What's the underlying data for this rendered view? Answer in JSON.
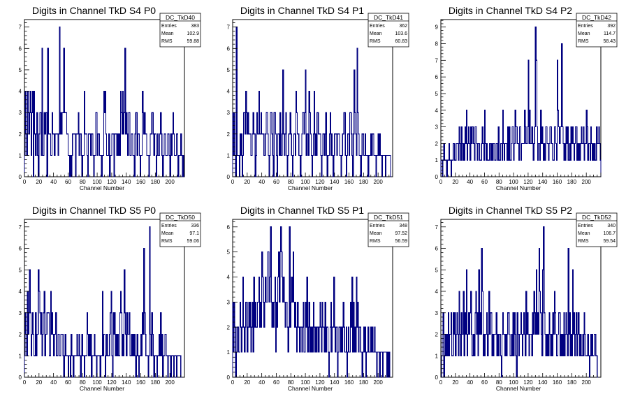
{
  "chart_data": [
    {
      "type": "histogram",
      "title": "Digits in Channel TkD S4 P0",
      "xlabel": "Channel Number",
      "xlim": [
        0,
        220
      ],
      "ylim": [
        0,
        7.35
      ],
      "xticks": [
        0,
        20,
        40,
        60,
        80,
        100,
        120,
        140,
        160,
        180,
        200
      ],
      "yticks": [
        0,
        1,
        2,
        3,
        4,
        5,
        6,
        7
      ],
      "stats": {
        "name": "DC_TkD40",
        "Entries": "383",
        "Mean": "102.9",
        "RMS": "59.88"
      },
      "color": "#000080",
      "values": [
        1,
        4,
        2,
        1,
        4,
        3,
        2,
        3,
        4,
        1,
        3,
        4,
        0,
        4,
        2,
        1,
        2,
        3,
        1,
        0,
        2,
        3,
        3,
        1,
        6,
        1,
        1,
        3,
        2,
        3,
        3,
        0,
        6,
        2,
        2,
        2,
        1,
        1,
        3,
        2,
        2,
        1,
        2,
        2,
        2,
        2,
        1,
        2,
        7,
        2,
        3,
        2,
        3,
        3,
        6,
        3,
        3,
        3,
        2,
        2,
        1,
        1,
        0,
        1,
        0,
        1,
        2,
        2,
        2,
        2,
        0,
        2,
        2,
        2,
        3,
        1,
        2,
        2,
        1,
        0,
        1,
        1,
        4,
        2,
        2,
        2,
        1,
        0,
        2,
        2,
        2,
        1,
        2,
        2,
        1,
        0,
        1,
        1,
        3,
        3,
        1,
        2,
        2,
        1,
        1,
        1,
        0,
        1,
        1,
        4,
        3,
        4,
        2,
        1,
        1,
        1,
        2,
        0,
        1,
        1,
        2,
        2,
        2,
        0,
        2,
        2,
        2,
        1,
        2,
        1,
        2,
        1,
        4,
        3,
        2,
        4,
        2,
        3,
        6,
        2,
        3,
        2,
        1,
        3,
        3,
        1,
        1,
        2,
        2,
        1,
        1,
        0,
        2,
        3,
        3,
        1,
        2,
        2,
        1,
        0,
        1,
        1,
        4,
        3,
        2,
        3,
        2,
        2,
        1,
        1,
        1,
        0,
        1,
        2,
        2,
        3,
        3,
        2,
        1,
        2,
        2,
        0,
        1,
        2,
        1,
        1,
        2,
        3,
        2,
        1,
        0,
        1,
        2,
        2,
        1,
        1,
        1,
        2,
        2,
        1,
        0,
        2,
        1,
        2,
        3,
        2,
        1,
        1,
        1,
        2,
        2,
        0,
        1,
        1,
        1,
        2,
        1,
        0,
        1
      ]
    },
    {
      "type": "histogram",
      "title": "Digits in Channel TkD S4 P1",
      "xlabel": "Channel Number",
      "xlim": [
        0,
        220
      ],
      "ylim": [
        0,
        7.35
      ],
      "xticks": [
        0,
        20,
        40,
        60,
        80,
        100,
        120,
        140,
        160,
        180,
        200
      ],
      "yticks": [
        0,
        1,
        2,
        3,
        4,
        5,
        6,
        7
      ],
      "stats": {
        "name": "DC_TkD41",
        "Entries": "362",
        "Mean": "103.6",
        "RMS": "60.83"
      },
      "color": "#000080",
      "values": [
        3,
        1,
        3,
        1,
        0,
        7,
        1,
        1,
        1,
        0,
        2,
        1,
        2,
        0,
        1,
        3,
        3,
        2,
        4,
        3,
        2,
        3,
        2,
        2,
        2,
        1,
        1,
        2,
        3,
        2,
        2,
        0,
        1,
        3,
        2,
        2,
        4,
        2,
        2,
        3,
        2,
        2,
        2,
        1,
        1,
        2,
        3,
        3,
        2,
        1,
        0,
        1,
        3,
        3,
        2,
        1,
        0,
        3,
        3,
        2,
        1,
        0,
        2,
        2,
        1,
        3,
        1,
        1,
        2,
        5,
        2,
        1,
        2,
        3,
        1,
        0,
        1,
        2,
        2,
        3,
        2,
        1,
        0,
        1,
        2,
        2,
        1,
        4,
        3,
        2,
        2,
        1,
        1,
        0,
        1,
        2,
        3,
        3,
        2,
        3,
        5,
        1,
        2,
        2,
        1,
        4,
        3,
        2,
        1,
        0,
        1,
        2,
        4,
        1,
        2,
        1,
        3,
        3,
        2,
        2,
        2,
        1,
        0,
        1,
        2,
        2,
        1,
        2,
        3,
        1,
        0,
        1,
        1,
        2,
        3,
        1,
        2,
        1,
        0,
        1,
        2,
        2,
        2,
        1,
        2,
        2,
        2,
        1,
        1,
        0,
        1,
        2,
        2,
        3,
        3,
        1,
        0,
        1,
        2,
        2,
        1,
        3,
        3,
        2,
        1,
        0,
        2,
        5,
        3,
        2,
        1,
        6,
        3,
        2,
        1,
        1,
        0,
        1,
        2,
        2,
        1,
        1,
        2,
        1,
        1,
        1,
        0,
        1,
        1,
        1,
        2,
        1,
        2,
        2,
        1,
        1,
        1,
        0,
        1,
        1,
        2,
        1,
        2,
        1,
        1,
        0,
        1,
        1,
        1,
        1,
        0,
        1,
        1,
        1,
        1,
        1,
        1,
        0
      ]
    },
    {
      "type": "histogram",
      "title": "Digits in Channel TkD S4 P2",
      "xlabel": "Channel Number",
      "xlim": [
        0,
        220
      ],
      "ylim": [
        0,
        9.45
      ],
      "xticks": [
        0,
        20,
        40,
        60,
        80,
        100,
        120,
        140,
        160,
        180,
        200
      ],
      "yticks": [
        0,
        1,
        2,
        3,
        4,
        5,
        6,
        7,
        8,
        9
      ],
      "stats": {
        "name": "DC_TkD42",
        "Entries": "392",
        "Mean": "114.7",
        "RMS": "58.43"
      },
      "color": "#000080",
      "values": [
        1,
        1,
        0,
        1,
        2,
        1,
        1,
        1,
        0,
        1,
        1,
        2,
        1,
        1,
        0,
        1,
        1,
        2,
        2,
        1,
        1,
        2,
        2,
        2,
        1,
        3,
        2,
        1,
        3,
        2,
        1,
        2,
        1,
        3,
        2,
        4,
        1,
        2,
        3,
        2,
        1,
        3,
        2,
        3,
        3,
        2,
        1,
        3,
        3,
        2,
        1,
        2,
        2,
        1,
        1,
        1,
        2,
        3,
        2,
        1,
        4,
        2,
        1,
        2,
        1,
        1,
        1,
        2,
        2,
        1,
        2,
        1,
        2,
        2,
        1,
        1,
        2,
        2,
        1,
        3,
        1,
        1,
        2,
        2,
        1,
        4,
        2,
        1,
        2,
        2,
        2,
        1,
        3,
        1,
        3,
        1,
        1,
        2,
        3,
        3,
        1,
        2,
        4,
        3,
        3,
        2,
        2,
        1,
        3,
        3,
        1,
        2,
        2,
        2,
        2,
        4,
        3,
        2,
        2,
        3,
        7,
        2,
        4,
        2,
        2,
        3,
        2,
        1,
        2,
        3,
        9,
        7,
        3,
        1,
        2,
        2,
        1,
        4,
        2,
        3,
        2,
        1,
        2,
        1,
        3,
        3,
        2,
        2,
        1,
        2,
        3,
        3,
        2,
        2,
        1,
        1,
        3,
        3,
        2,
        1,
        7,
        4,
        3,
        2,
        3,
        3,
        8,
        3,
        2,
        1,
        2,
        1,
        3,
        2,
        3,
        1,
        1,
        2,
        1,
        3,
        2,
        3,
        2,
        1,
        2,
        3,
        3,
        1,
        2,
        1,
        2,
        1,
        2,
        3,
        2,
        2,
        3,
        1,
        2,
        2,
        4,
        3,
        1,
        2,
        2,
        1,
        3,
        2,
        1,
        2,
        1,
        2,
        1,
        1,
        3,
        2,
        2,
        3,
        2,
        1
      ]
    },
    {
      "type": "histogram",
      "title": "Digits in Channel TkD S5 P0",
      "xlabel": "Channel Number",
      "xlim": [
        0,
        220
      ],
      "ylim": [
        0,
        7.35
      ],
      "xticks": [
        0,
        20,
        40,
        60,
        80,
        100,
        120,
        140,
        160,
        180,
        200
      ],
      "yticks": [
        0,
        1,
        2,
        3,
        4,
        5,
        6,
        7
      ],
      "stats": {
        "name": "DC_TkD50",
        "Entries": "336",
        "Mean": "97.1",
        "RMS": "59.06"
      },
      "color": "#000080",
      "values": [
        1,
        3,
        2,
        1,
        4,
        2,
        3,
        5,
        3,
        1,
        2,
        3,
        2,
        1,
        1,
        3,
        1,
        2,
        2,
        5,
        4,
        3,
        2,
        3,
        1,
        2,
        3,
        4,
        1,
        2,
        2,
        3,
        3,
        3,
        1,
        1,
        4,
        2,
        3,
        2,
        1,
        2,
        2,
        3,
        1,
        1,
        2,
        2,
        1,
        1,
        2,
        2,
        2,
        1,
        0,
        1,
        2,
        1,
        1,
        1,
        0,
        1,
        1,
        0,
        2,
        1,
        1,
        0,
        1,
        1,
        1,
        1,
        2,
        1,
        1,
        2,
        1,
        0,
        1,
        2,
        1,
        1,
        0,
        1,
        1,
        1,
        3,
        2,
        1,
        2,
        1,
        2,
        0,
        1,
        1,
        1,
        2,
        1,
        1,
        0,
        1,
        1,
        1,
        1,
        0,
        1,
        1,
        4,
        1,
        2,
        2,
        0,
        1,
        2,
        1,
        1,
        1,
        2,
        3,
        4,
        1,
        0,
        3,
        2,
        3,
        1,
        2,
        1,
        2,
        1,
        1,
        3,
        4,
        3,
        1,
        2,
        1,
        5,
        3,
        2,
        1,
        3,
        2,
        2,
        3,
        1,
        1,
        2,
        1,
        2,
        1,
        2,
        1,
        0,
        1,
        2,
        1,
        0,
        1,
        1,
        2,
        1,
        3,
        2,
        6,
        3,
        2,
        1,
        1,
        1,
        0,
        1,
        7,
        2,
        1,
        3,
        2,
        1,
        0,
        1,
        1,
        1,
        0,
        1,
        1,
        2,
        1,
        3,
        1,
        2,
        0,
        1,
        1,
        2,
        2,
        1,
        1,
        0,
        1,
        1,
        1,
        0,
        1,
        1,
        1,
        0,
        1,
        1,
        1,
        0,
        1,
        1,
        1,
        1,
        1,
        0
      ]
    },
    {
      "type": "histogram",
      "title": "Digits in Channel TkD S5 P1",
      "xlabel": "Channel Number",
      "xlim": [
        0,
        220
      ],
      "ylim": [
        0,
        6.3
      ],
      "xticks": [
        0,
        20,
        40,
        60,
        80,
        100,
        120,
        140,
        160,
        180,
        200
      ],
      "yticks": [
        0,
        1,
        2,
        3,
        4,
        5,
        6
      ],
      "stats": {
        "name": "DC_TkD51",
        "Entries": "348",
        "Mean": "97.52",
        "RMS": "56.59"
      },
      "color": "#000080",
      "values": [
        3,
        1,
        3,
        2,
        0,
        1,
        2,
        2,
        1,
        1,
        3,
        2,
        1,
        2,
        4,
        2,
        1,
        2,
        3,
        3,
        1,
        2,
        3,
        2,
        3,
        1,
        2,
        3,
        1,
        4,
        2,
        3,
        2,
        2,
        3,
        3,
        4,
        2,
        3,
        2,
        5,
        4,
        3,
        2,
        3,
        4,
        3,
        3,
        5,
        5,
        3,
        4,
        6,
        3,
        2,
        3,
        2,
        3,
        4,
        1,
        3,
        2,
        4,
        5,
        3,
        5,
        6,
        5,
        4,
        3,
        4,
        3,
        2,
        3,
        3,
        2,
        1,
        2,
        6,
        2,
        3,
        4,
        3,
        5,
        3,
        2,
        3,
        2,
        1,
        3,
        2,
        2,
        1,
        2,
        2,
        1,
        2,
        3,
        1,
        1,
        3,
        2,
        4,
        1,
        2,
        3,
        1,
        2,
        1,
        2,
        1,
        3,
        2,
        1,
        2,
        1,
        2,
        2,
        1,
        2,
        3,
        2,
        1,
        3,
        2,
        2,
        1,
        3,
        1,
        2,
        2,
        1,
        0,
        1,
        2,
        3,
        1,
        2,
        2,
        4,
        2,
        1,
        2,
        2,
        0,
        1,
        2,
        2,
        1,
        2,
        1,
        2,
        3,
        2,
        1,
        1,
        2,
        0,
        1,
        2,
        1,
        1,
        3,
        2,
        4,
        1,
        3,
        1,
        2,
        1,
        4,
        2,
        3,
        1,
        2,
        2,
        1,
        1,
        0,
        1,
        2,
        1,
        2,
        0,
        1,
        1,
        2,
        1,
        1,
        1,
        2,
        1,
        2,
        1,
        1,
        2,
        1,
        1,
        0,
        1,
        1,
        1,
        0,
        1,
        1,
        1,
        0,
        1,
        1,
        1,
        1,
        1,
        0,
        1,
        0,
        1
      ]
    },
    {
      "type": "histogram",
      "title": "Digits in Channel TkD S5 P2",
      "xlabel": "Channel Number",
      "xlim": [
        0,
        220
      ],
      "ylim": [
        0,
        7.35
      ],
      "xticks": [
        0,
        20,
        40,
        60,
        80,
        100,
        120,
        140,
        160,
        180,
        200
      ],
      "yticks": [
        0,
        1,
        2,
        3,
        4,
        5,
        6,
        7
      ],
      "stats": {
        "name": "DC_TkD52",
        "Entries": "340",
        "Mean": "106.7",
        "RMS": "59.54"
      },
      "color": "#000080",
      "values": [
        0,
        1,
        2,
        3,
        0,
        1,
        2,
        1,
        2,
        1,
        3,
        1,
        2,
        2,
        3,
        1,
        1,
        3,
        2,
        3,
        1,
        2,
        3,
        2,
        1,
        4,
        2,
        1,
        3,
        2,
        2,
        4,
        1,
        3,
        2,
        5,
        1,
        2,
        3,
        2,
        3,
        4,
        2,
        1,
        1,
        2,
        1,
        3,
        4,
        2,
        3,
        1,
        5,
        2,
        3,
        2,
        6,
        4,
        1,
        2,
        1,
        2,
        2,
        3,
        1,
        2,
        4,
        2,
        3,
        3,
        1,
        2,
        1,
        2,
        2,
        2,
        3,
        1,
        2,
        1,
        2,
        2,
        1,
        0,
        2,
        3,
        2,
        2,
        1,
        2,
        1,
        2,
        3,
        3,
        2,
        1,
        1,
        2,
        1,
        3,
        1,
        3,
        2,
        1,
        0,
        3,
        2,
        1,
        2,
        2,
        3,
        2,
        1,
        2,
        3,
        2,
        1,
        4,
        2,
        3,
        2,
        1,
        2,
        2,
        2,
        1,
        3,
        2,
        4,
        3,
        2,
        5,
        2,
        3,
        2,
        6,
        4,
        3,
        2,
        1,
        5,
        7,
        3,
        2,
        1,
        2,
        1,
        2,
        1,
        3,
        2,
        1,
        2,
        1,
        3,
        2,
        4,
        3,
        2,
        1,
        1,
        2,
        3,
        3,
        1,
        2,
        1,
        2,
        1,
        3,
        1,
        2,
        3,
        2,
        1,
        6,
        2,
        3,
        1,
        2,
        1,
        5,
        2,
        3,
        1,
        2,
        3,
        1,
        2,
        3,
        2,
        1,
        2,
        1,
        1,
        2,
        1,
        3,
        2,
        1,
        1,
        1,
        2,
        1,
        0,
        1,
        2,
        1,
        2,
        1,
        1,
        2,
        2,
        1,
        1,
        0
      ]
    }
  ]
}
